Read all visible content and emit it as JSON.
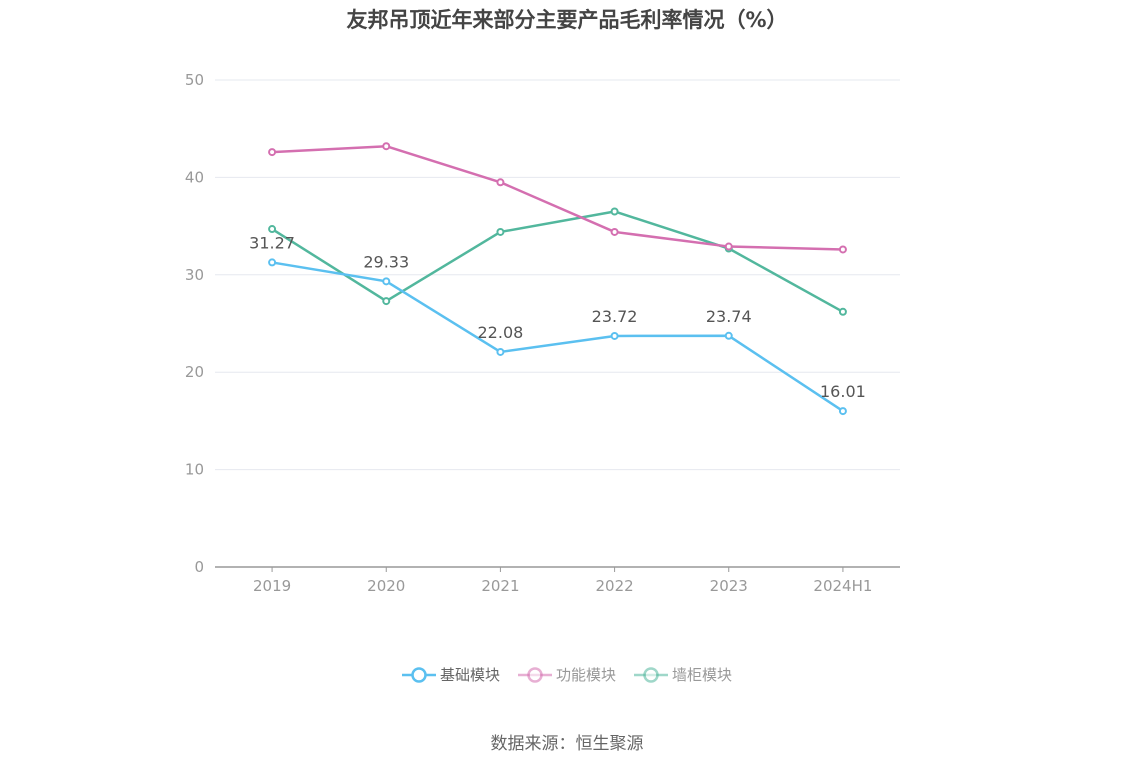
{
  "chart_data": {
    "type": "line",
    "title": "友邦吊顶近年来部分主要产品毛利率情况（%）",
    "categories": [
      "2019",
      "2020",
      "2021",
      "2022",
      "2023",
      "2024H1"
    ],
    "ylim": [
      0,
      50
    ],
    "yticks": [
      0,
      10,
      20,
      30,
      40,
      50
    ],
    "grid": true,
    "legend_position": "bottom",
    "series": [
      {
        "name": "基础模块",
        "color": "#5bc0f0",
        "values": [
          31.27,
          29.33,
          22.08,
          23.72,
          23.74,
          16.01
        ],
        "show_labels": true,
        "labels": [
          "31.27",
          "29.33",
          "22.08",
          "23.72",
          "23.74",
          "16.01"
        ]
      },
      {
        "name": "功能模块",
        "color": "#d46fb0",
        "values": [
          42.6,
          43.2,
          39.5,
          34.4,
          32.9,
          32.6
        ],
        "show_labels": false
      },
      {
        "name": "墙柜模块",
        "color": "#52b79d",
        "values": [
          34.7,
          27.3,
          34.4,
          36.5,
          32.7,
          26.2
        ],
        "show_labels": false
      }
    ]
  },
  "source": "数据来源：恒生聚源"
}
